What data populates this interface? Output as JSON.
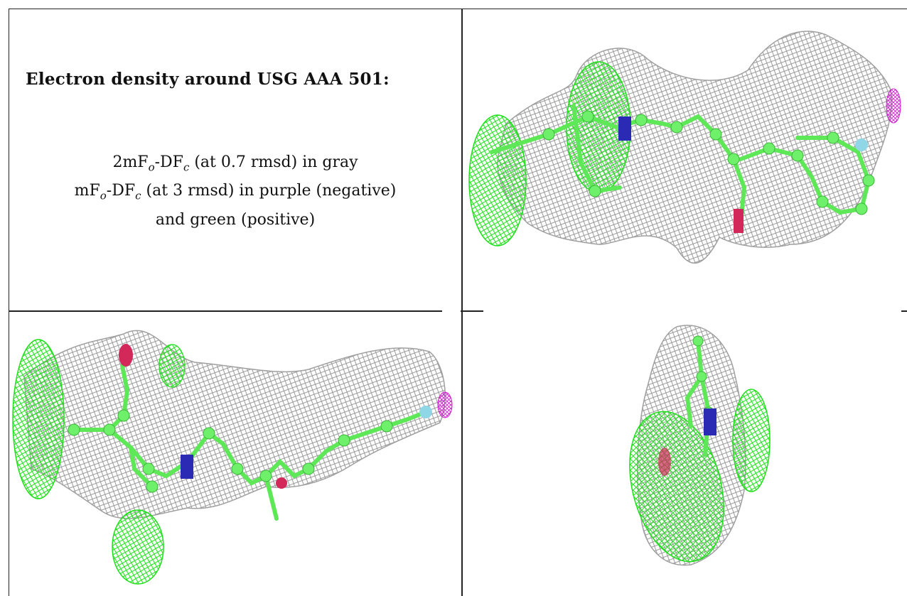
{
  "panel_text": {
    "title": "Electron density around USG AAA 501:",
    "line1": {
      "prefix": "2mF",
      "sub1": "o",
      "middle": "-DF",
      "sub2": "c",
      "suffix": " (at 0.7 rmsd) in gray"
    },
    "line2": {
      "prefix": "mF",
      "sub1": "o",
      "middle": "-DF",
      "sub2": "c",
      "suffix": " (at 3 rmsd) in purple (negative)"
    },
    "line3": "and green (positive)"
  },
  "colors": {
    "mesh_gray": "#9a9a9a",
    "mesh_green": "#22e61e",
    "mesh_purple": "#d21ed2",
    "atom_green": "#6ff06a",
    "atom_blue": "#2a2ab4",
    "atom_red": "#d2285a",
    "atom_cyan": "#8fd6e6"
  },
  "images": [
    {
      "name": "density-view-top-right"
    },
    {
      "name": "density-view-bottom-left"
    },
    {
      "name": "density-view-bottom-right"
    }
  ]
}
